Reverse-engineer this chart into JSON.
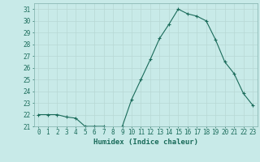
{
  "x": [
    0,
    1,
    2,
    3,
    4,
    5,
    6,
    7,
    8,
    9,
    10,
    11,
    12,
    13,
    14,
    15,
    16,
    17,
    18,
    19,
    20,
    21,
    22,
    23
  ],
  "y": [
    22,
    22,
    22,
    21.8,
    21.7,
    21,
    21,
    21,
    20.7,
    21,
    23.3,
    25,
    26.7,
    28.5,
    29.7,
    31,
    30.6,
    30.4,
    30,
    28.4,
    26.5,
    25.5,
    23.8,
    22.8
  ],
  "line_color": "#1a6b5a",
  "marker": "+",
  "marker_size": 3,
  "marker_linewidth": 0.8,
  "line_width": 0.8,
  "bg_color": "#c8eae8",
  "grid_color": "#b8d8d4",
  "xlabel": "Humidex (Indice chaleur)",
  "ylim": [
    21,
    31.5
  ],
  "xlim": [
    -0.5,
    23.5
  ],
  "yticks": [
    21,
    22,
    23,
    24,
    25,
    26,
    27,
    28,
    29,
    30,
    31
  ],
  "xticks": [
    0,
    1,
    2,
    3,
    4,
    5,
    6,
    7,
    8,
    9,
    10,
    11,
    12,
    13,
    14,
    15,
    16,
    17,
    18,
    19,
    20,
    21,
    22,
    23
  ],
  "tick_color": "#1a6b5a",
  "label_fontsize": 5.5,
  "axis_fontsize": 6.5,
  "spine_color": "#8ab8b4"
}
